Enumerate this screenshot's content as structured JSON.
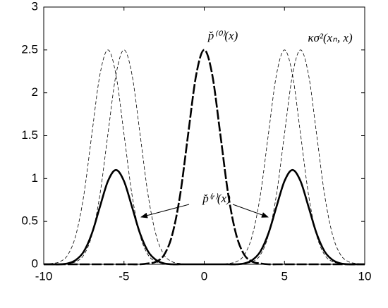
{
  "chart_data": {
    "type": "line",
    "x": [
      -10,
      -9.5,
      -9,
      -8.5,
      -8,
      -7.5,
      -7,
      -6.5,
      -6,
      -5.5,
      -5,
      -4.5,
      -4,
      -3.5,
      -3,
      -2.5,
      -2,
      -1.5,
      -1,
      -0.5,
      0,
      0.5,
      1,
      1.5,
      2,
      2.5,
      3,
      3.5,
      4,
      4.5,
      5,
      5.5,
      6,
      6.5,
      7,
      7.5,
      8,
      8.5,
      9,
      9.5,
      10
    ],
    "series": [
      {
        "color": "#000000",
        "dash": true,
        "width": 0.8,
        "values": [
          0,
          0.01,
          0.03,
          0.11,
          0.34,
          0.81,
          1.52,
          2.21,
          2.5,
          2.21,
          1.52,
          0.81,
          0.34,
          0.11,
          0.03,
          0.01,
          0,
          0,
          0,
          0,
          0,
          0,
          0,
          0,
          0,
          0,
          0,
          0,
          0,
          0,
          0,
          0,
          0,
          0,
          0,
          0,
          0,
          0,
          0,
          0,
          0
        ]
      },
      {
        "color": "#000000",
        "dash": true,
        "width": 0.8,
        "values": [
          0,
          0,
          0,
          0.01,
          0.03,
          0.11,
          0.34,
          0.81,
          1.52,
          2.21,
          2.5,
          2.21,
          1.52,
          0.81,
          0.34,
          0.11,
          0.03,
          0.01,
          0,
          0,
          0,
          0,
          0,
          0,
          0,
          0,
          0,
          0,
          0,
          0,
          0,
          0,
          0,
          0,
          0,
          0,
          0,
          0,
          0,
          0,
          0
        ]
      },
      {
        "color": "#000000",
        "dash": true,
        "width": 0.8,
        "values": [
          0,
          0,
          0,
          0,
          0,
          0,
          0,
          0,
          0,
          0,
          0,
          0,
          0,
          0,
          0,
          0,
          0,
          0,
          0,
          0,
          0,
          0,
          0,
          0.01,
          0.03,
          0.11,
          0.34,
          0.81,
          1.52,
          2.21,
          2.5,
          2.21,
          1.52,
          0.81,
          0.34,
          0.11,
          0.03,
          0.01,
          0,
          0,
          0
        ]
      },
      {
        "color": "#000000",
        "dash": true,
        "width": 0.8,
        "values": [
          0,
          0,
          0,
          0,
          0,
          0,
          0,
          0,
          0,
          0,
          0,
          0,
          0,
          0,
          0,
          0,
          0,
          0,
          0,
          0,
          0,
          0,
          0,
          0,
          0,
          0.01,
          0.03,
          0.11,
          0.34,
          0.81,
          1.52,
          2.21,
          2.5,
          2.21,
          1.52,
          0.81,
          0.34,
          0.11,
          0.03,
          0.01,
          0
        ]
      },
      {
        "color": "#000000",
        "dash": true,
        "width": 2.6,
        "values": [
          0,
          0,
          0,
          0,
          0,
          0,
          0,
          0,
          0,
          0,
          0,
          0,
          0,
          0.01,
          0.03,
          0.11,
          0.34,
          0.81,
          1.52,
          2.21,
          2.5,
          2.21,
          1.52,
          0.81,
          0.34,
          0.11,
          0.03,
          0.01,
          0,
          0,
          0,
          0,
          0,
          0,
          0,
          0,
          0,
          0,
          0,
          0,
          0
        ]
      },
      {
        "color": "#000000",
        "dash": false,
        "width": 2.6,
        "values": [
          0,
          0,
          0,
          0.01,
          0.05,
          0.15,
          0.36,
          0.67,
          0.97,
          1.1,
          0.97,
          0.67,
          0.36,
          0.15,
          0.05,
          0.01,
          0,
          0,
          0,
          0,
          0,
          0,
          0,
          0,
          0,
          0.01,
          0.05,
          0.15,
          0.36,
          0.67,
          0.97,
          1.1,
          0.97,
          0.67,
          0.36,
          0.15,
          0.05,
          0.01,
          0,
          0,
          0
        ]
      }
    ],
    "xlim": [
      -10,
      10
    ],
    "ylim": [
      0,
      3
    ],
    "xticks": [
      -10,
      -5,
      0,
      5,
      10
    ],
    "yticks": [
      0,
      0.5,
      1,
      1.5,
      2,
      2.5,
      3
    ],
    "annotations": [
      "p̌⁽⁰⁾(x)",
      "κσ²(xₙ, x)",
      "p̌⁽ʳ⁾(x)"
    ]
  }
}
